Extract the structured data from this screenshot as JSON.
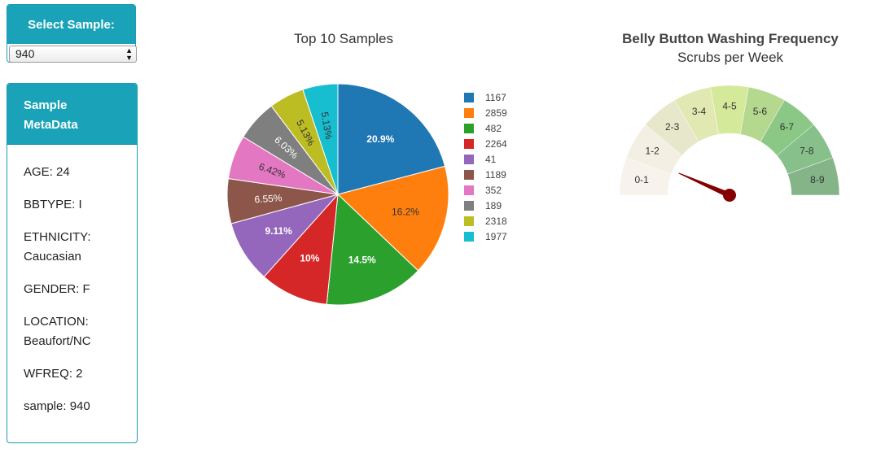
{
  "selector": {
    "heading": "Select Sample:",
    "value": "940",
    "arrows": "▲▼"
  },
  "metadata": {
    "heading_line1": "Sample",
    "heading_line2": "MetaData",
    "rows": [
      "AGE: 24",
      "BBTYPE: I",
      "ETHNICITY: Caucasian",
      "GENDER: F",
      "LOCATION: Beaufort/NC",
      "WFREQ: 2",
      "sample: 940"
    ]
  },
  "chart_data": [
    {
      "type": "pie",
      "title": "Top 10 Samples",
      "legend_position": "right",
      "labels": [
        "1167",
        "2859",
        "482",
        "2264",
        "41",
        "1189",
        "352",
        "189",
        "2318",
        "1977"
      ],
      "values": [
        20.9,
        16.2,
        14.5,
        10,
        9.11,
        6.55,
        6.42,
        6.03,
        5.13,
        5.13
      ],
      "value_labels": [
        "20.9%",
        "16.2%",
        "14.5%",
        "10%",
        "9.11%",
        "6.55%",
        "6.42%",
        "6.03%",
        "5.13%",
        "5.13%"
      ],
      "colors": [
        "#1f77b4",
        "#ff7f0e",
        "#2ca02c",
        "#d62728",
        "#9467bd",
        "#8c564b",
        "#e377c2",
        "#7f7f7f",
        "#bcbd22",
        "#17becf"
      ]
    },
    {
      "type": "gauge",
      "title": "Belly Button Washing Frequency",
      "subtitle": "Scrubs per Week",
      "segments": [
        "0-1",
        "1-2",
        "2-3",
        "3-4",
        "4-5",
        "5-6",
        "6-7",
        "7-8",
        "8-9"
      ],
      "segment_colors": [
        "#f7f2ec",
        "#f3f0e3",
        "#e7e7cb",
        "#e2e8b1",
        "#d4e99a",
        "#b5d88f",
        "#8bc785",
        "#87c08a",
        "#84b488"
      ],
      "range": [
        0,
        9
      ],
      "value": 2,
      "needle_color": "#850000"
    }
  ]
}
